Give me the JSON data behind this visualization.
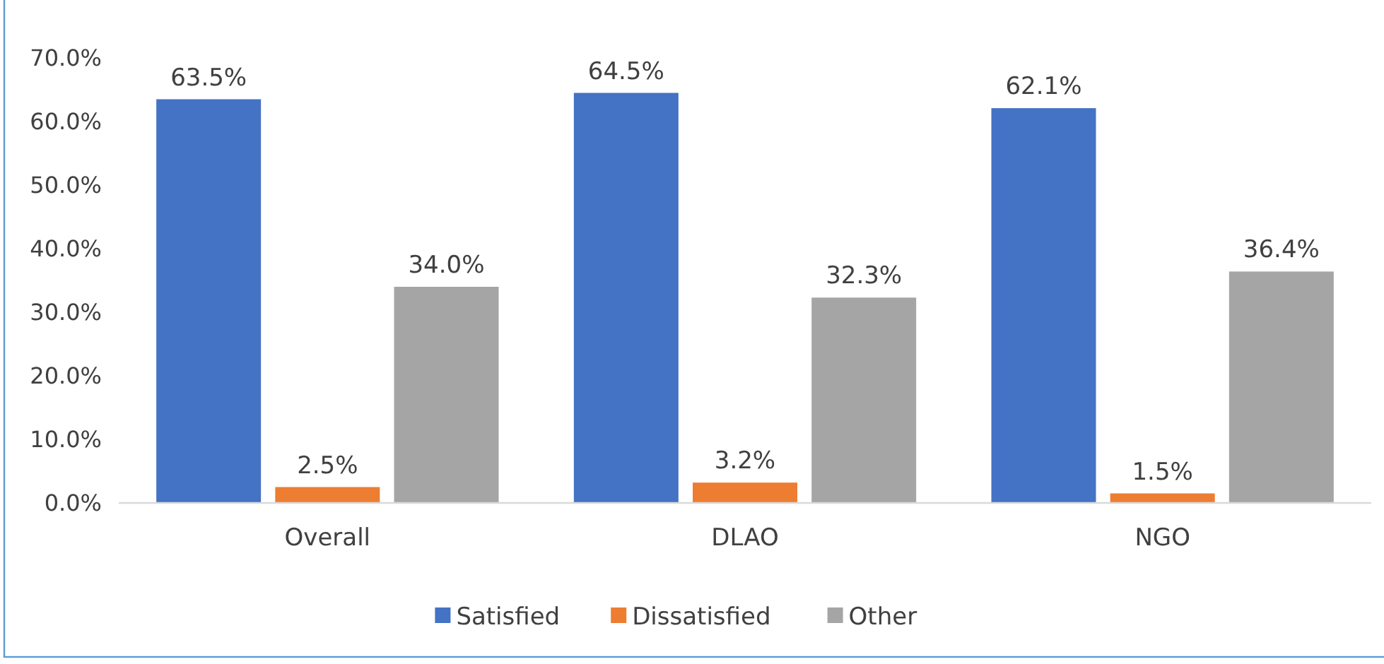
{
  "chart_data": {
    "type": "bar",
    "categories": [
      "Overall",
      "DLAO",
      "NGO"
    ],
    "series": [
      {
        "name": "Satisfied",
        "color": "#4472c4",
        "values": [
          63.5,
          64.5,
          62.1
        ],
        "value_labels": [
          "63.5%",
          "64.5%",
          "62.1%"
        ]
      },
      {
        "name": "Dissatisfied",
        "color": "#ed7d31",
        "values": [
          2.5,
          3.2,
          1.5
        ],
        "value_labels": [
          "2.5%",
          "3.2%",
          "1.5%"
        ]
      },
      {
        "name": "Other",
        "color": "#a5a5a5",
        "values": [
          34.0,
          32.3,
          36.4
        ],
        "value_labels": [
          "34.0%",
          "32.3%",
          "36.4%"
        ]
      }
    ],
    "ylim": [
      0,
      70
    ],
    "yticks": [
      {
        "value": 0,
        "label": "0.0%"
      },
      {
        "value": 10,
        "label": "10.0%"
      },
      {
        "value": 20,
        "label": "20.0%"
      },
      {
        "value": 30,
        "label": "30.0%"
      },
      {
        "value": 40,
        "label": "40.0%"
      },
      {
        "value": 50,
        "label": "50.0%"
      },
      {
        "value": 60,
        "label": "60.0%"
      },
      {
        "value": 70,
        "label": "70.0%"
      }
    ],
    "grid": false,
    "legend": "bottom"
  }
}
